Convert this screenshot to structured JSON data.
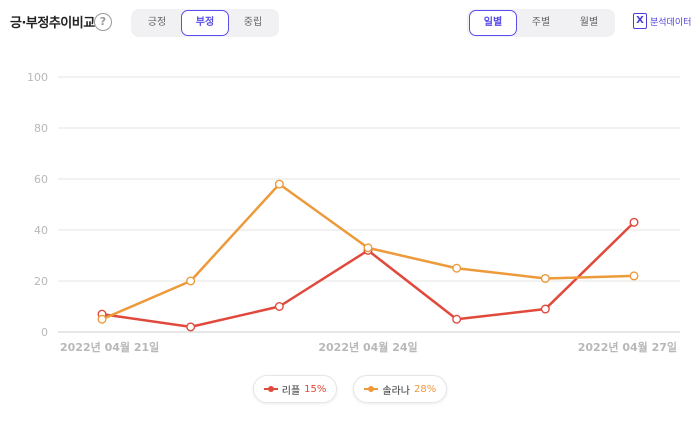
{
  "header": {
    "title": "긍·부정추이비교",
    "help": "?",
    "sentiment_tabs": [
      {
        "label": "긍정",
        "active": false
      },
      {
        "label": "부정",
        "active": true
      },
      {
        "label": "중립",
        "active": false
      }
    ],
    "period_tabs": [
      {
        "label": "일별",
        "active": true
      },
      {
        "label": "주별",
        "active": false
      },
      {
        "label": "월별",
        "active": false
      }
    ],
    "excel_label": "분석데이터"
  },
  "colors": {
    "accent": "#5b4ee8",
    "series1": "#e0493b",
    "series2": "#ec9a3a",
    "grid": "#e4e4e4",
    "axis_text": "#b8b8b8"
  },
  "chart_data": {
    "type": "line",
    "x": [
      "2022-04-21",
      "2022-04-22",
      "2022-04-23",
      "2022-04-24",
      "2022-04-25",
      "2022-04-26",
      "2022-04-27"
    ],
    "x_tick_labels": [
      "2022년 04월 21일",
      "2022년 04월 24일",
      "2022년 04월 27일"
    ],
    "x_tick_dates": [
      "2022-04-21",
      "2022-04-24",
      "2022-04-27"
    ],
    "y_ticks": [
      0,
      20,
      40,
      60,
      80,
      100
    ],
    "ylim": [
      0,
      100
    ],
    "grid": true,
    "legend_position": "bottom-center",
    "series": [
      {
        "name": "리플",
        "pct": "15%",
        "color": "#e0493b",
        "values": [
          7,
          2,
          10,
          32,
          5,
          9,
          43
        ]
      },
      {
        "name": "솔라나",
        "pct": "28%",
        "color": "#ec9a3a",
        "values": [
          5,
          20,
          58,
          33,
          25,
          21,
          22
        ]
      }
    ]
  }
}
